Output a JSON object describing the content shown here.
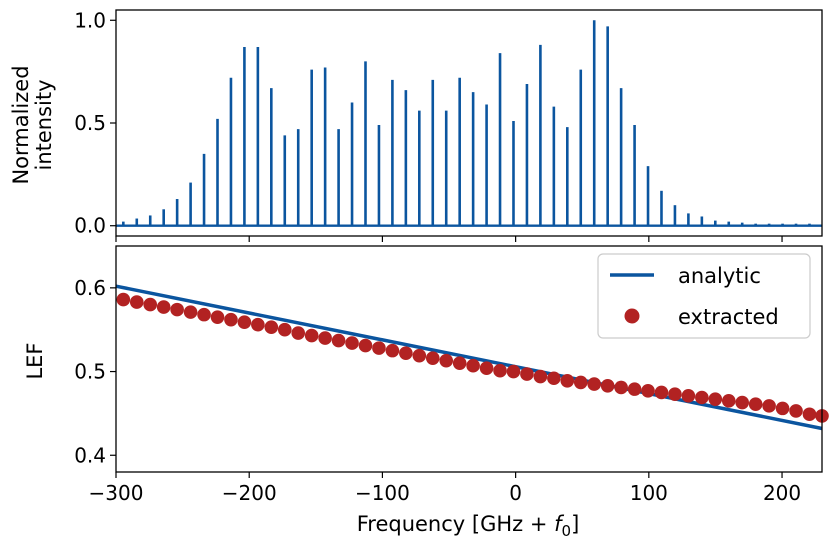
{
  "chart_data": [
    {
      "type": "bar",
      "panel": "top",
      "title": "",
      "ylabel_lines": [
        "Normalized",
        "intensity"
      ],
      "xlabel": "",
      "xlim": [
        -300,
        230
      ],
      "ylim": [
        -0.05,
        1.05
      ],
      "x_ticks": [
        -300,
        -200,
        -100,
        0,
        100,
        200
      ],
      "y_ticks": [
        0.0,
        0.5,
        1.0
      ],
      "y_tick_labels": [
        "0.0",
        "0.5",
        "1.0"
      ],
      "series_color": "#0b559f",
      "x": [
        -294.5,
        -284.4,
        -274.3,
        -264.2,
        -254.1,
        -244.0,
        -233.9,
        -223.8,
        -213.7,
        -203.6,
        -193.5,
        -183.4,
        -173.3,
        -163.2,
        -153.1,
        -143.0,
        -132.9,
        -122.8,
        -112.7,
        -102.6,
        -92.5,
        -82.4,
        -72.3,
        -62.2,
        -52.1,
        -42.0,
        -31.9,
        -21.8,
        -11.7,
        -1.6,
        8.5,
        18.6,
        28.7,
        38.8,
        48.9,
        59.0,
        69.1,
        79.2,
        89.3,
        99.4,
        109.5,
        119.6,
        129.7,
        139.8,
        149.9,
        160.0,
        170.1,
        180.2,
        190.3,
        200.4,
        210.5,
        220.6
      ],
      "values": [
        0.02,
        0.035,
        0.05,
        0.08,
        0.13,
        0.21,
        0.35,
        0.52,
        0.72,
        0.87,
        0.87,
        0.67,
        0.44,
        0.47,
        0.76,
        0.77,
        0.47,
        0.6,
        0.8,
        0.49,
        0.71,
        0.66,
        0.56,
        0.71,
        0.56,
        0.72,
        0.65,
        0.59,
        0.84,
        0.51,
        0.69,
        0.88,
        0.58,
        0.48,
        0.76,
        1.0,
        0.97,
        0.67,
        0.49,
        0.29,
        0.17,
        0.1,
        0.06,
        0.045,
        0.025,
        0.02,
        0.015,
        0.01,
        0.01,
        0.01,
        0.01,
        0.01
      ]
    },
    {
      "type": "line",
      "panel": "bottom",
      "title": "",
      "xlabel_prefix": "Frequency [GHz + ",
      "xlabel_var": "f",
      "xlabel_sub": "0",
      "xlabel_suffix": "]",
      "ylabel": "LEF",
      "xlim": [
        -300,
        230
      ],
      "ylim": [
        0.38,
        0.65
      ],
      "x_ticks": [
        -300,
        -200,
        -100,
        0,
        100,
        200
      ],
      "x_tick_labels": [
        "−300",
        "−200",
        "−100",
        "0",
        "100",
        "200"
      ],
      "y_ticks": [
        0.4,
        0.5,
        0.6
      ],
      "y_tick_labels": [
        "0.4",
        "0.5",
        "0.6"
      ],
      "legend_position": "top-right",
      "series": [
        {
          "name": "analytic",
          "kind": "line",
          "color": "#0b559f",
          "x": [
            -300,
            230
          ],
          "values": [
            0.602,
            0.432
          ]
        },
        {
          "name": "extracted",
          "kind": "scatter",
          "color": "#b22222",
          "x": [
            -294.5,
            -284.4,
            -274.3,
            -264.2,
            -254.1,
            -244.0,
            -233.9,
            -223.8,
            -213.7,
            -203.6,
            -193.5,
            -183.4,
            -173.3,
            -163.2,
            -153.1,
            -143.0,
            -132.9,
            -122.8,
            -112.7,
            -102.6,
            -92.5,
            -82.4,
            -72.3,
            -62.2,
            -52.1,
            -42.0,
            -31.9,
            -21.8,
            -11.7,
            -1.6,
            8.5,
            18.6,
            28.7,
            38.8,
            48.9,
            59.0,
            69.1,
            79.2,
            89.3,
            99.4,
            109.5,
            119.6,
            129.7,
            139.8,
            149.9,
            160.0,
            170.1,
            180.2,
            190.3,
            200.4,
            210.5,
            220.6,
            230.0
          ],
          "values": [
            0.586,
            0.583,
            0.58,
            0.577,
            0.574,
            0.571,
            0.568,
            0.565,
            0.562,
            0.559,
            0.556,
            0.553,
            0.55,
            0.546,
            0.543,
            0.54,
            0.537,
            0.534,
            0.531,
            0.528,
            0.525,
            0.522,
            0.519,
            0.516,
            0.513,
            0.51,
            0.507,
            0.504,
            0.501,
            0.5,
            0.497,
            0.494,
            0.492,
            0.489,
            0.487,
            0.485,
            0.483,
            0.481,
            0.479,
            0.477,
            0.475,
            0.473,
            0.471,
            0.469,
            0.467,
            0.465,
            0.463,
            0.461,
            0.459,
            0.456,
            0.453,
            0.449,
            0.447
          ]
        }
      ]
    }
  ]
}
